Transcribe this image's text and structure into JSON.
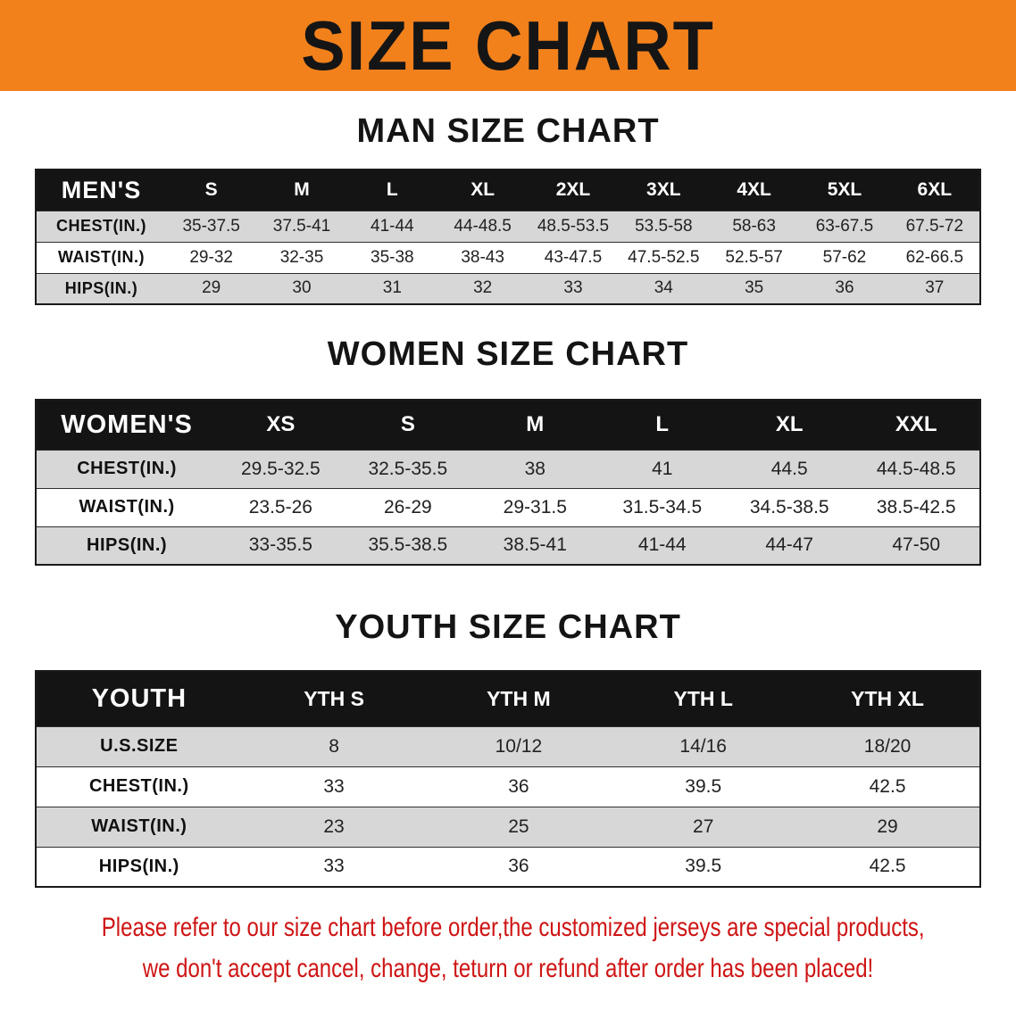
{
  "banner": {
    "title": "SIZE CHART",
    "bg_color": "#f2811c"
  },
  "sections": [
    {
      "id": "men",
      "heading": "MAN SIZE CHART",
      "header_label": "MEN'S",
      "columns": [
        "S",
        "M",
        "L",
        "XL",
        "2XL",
        "3XL",
        "4XL",
        "5XL",
        "6XL"
      ],
      "rows": [
        {
          "label": "CHEST(IN.)",
          "shaded": true,
          "values": [
            "35-37.5",
            "37.5-41",
            "41-44",
            "44-48.5",
            "48.5-53.5",
            "53.5-58",
            "58-63",
            "63-67.5",
            "67.5-72"
          ]
        },
        {
          "label": "WAIST(IN.)",
          "shaded": false,
          "values": [
            "29-32",
            "32-35",
            "35-38",
            "38-43",
            "43-47.5",
            "47.5-52.5",
            "52.5-57",
            "57-62",
            "62-66.5"
          ]
        },
        {
          "label": "HIPS(IN.)",
          "shaded": true,
          "values": [
            "29",
            "30",
            "31",
            "32",
            "33",
            "34",
            "35",
            "36",
            "37"
          ]
        }
      ]
    },
    {
      "id": "women",
      "heading": "WOMEN SIZE CHART",
      "header_label": "WOMEN'S",
      "columns": [
        "XS",
        "S",
        "M",
        "L",
        "XL",
        "XXL"
      ],
      "rows": [
        {
          "label": "CHEST(IN.)",
          "shaded": true,
          "values": [
            "29.5-32.5",
            "32.5-35.5",
            "38",
            "41",
            "44.5",
            "44.5-48.5"
          ]
        },
        {
          "label": "WAIST(IN.)",
          "shaded": false,
          "values": [
            "23.5-26",
            "26-29",
            "29-31.5",
            "31.5-34.5",
            "34.5-38.5",
            "38.5-42.5"
          ]
        },
        {
          "label": "HIPS(IN.)",
          "shaded": true,
          "values": [
            "33-35.5",
            "35.5-38.5",
            "38.5-41",
            "41-44",
            "44-47",
            "47-50"
          ]
        }
      ]
    },
    {
      "id": "youth",
      "heading": "YOUTH SIZE CHART",
      "header_label": "YOUTH",
      "columns": [
        "YTH S",
        "YTH M",
        "YTH L",
        "YTH XL"
      ],
      "rows": [
        {
          "label": "U.S.SIZE",
          "shaded": true,
          "values": [
            "8",
            "10/12",
            "14/16",
            "18/20"
          ]
        },
        {
          "label": "CHEST(IN.)",
          "shaded": false,
          "values": [
            "33",
            "36",
            "39.5",
            "42.5"
          ]
        },
        {
          "label": "WAIST(IN.)",
          "shaded": true,
          "values": [
            "23",
            "25",
            "27",
            "29"
          ]
        },
        {
          "label": "HIPS(IN.)",
          "shaded": false,
          "values": [
            "33",
            "36",
            "39.5",
            "42.5"
          ]
        }
      ]
    }
  ],
  "disclaimer": {
    "line1": "Please refer to our size chart before order,the customized jerseys are special products,",
    "line2": "we don't accept cancel, change, teturn or refund after order has been placed!",
    "text_color": "#cf1414"
  }
}
